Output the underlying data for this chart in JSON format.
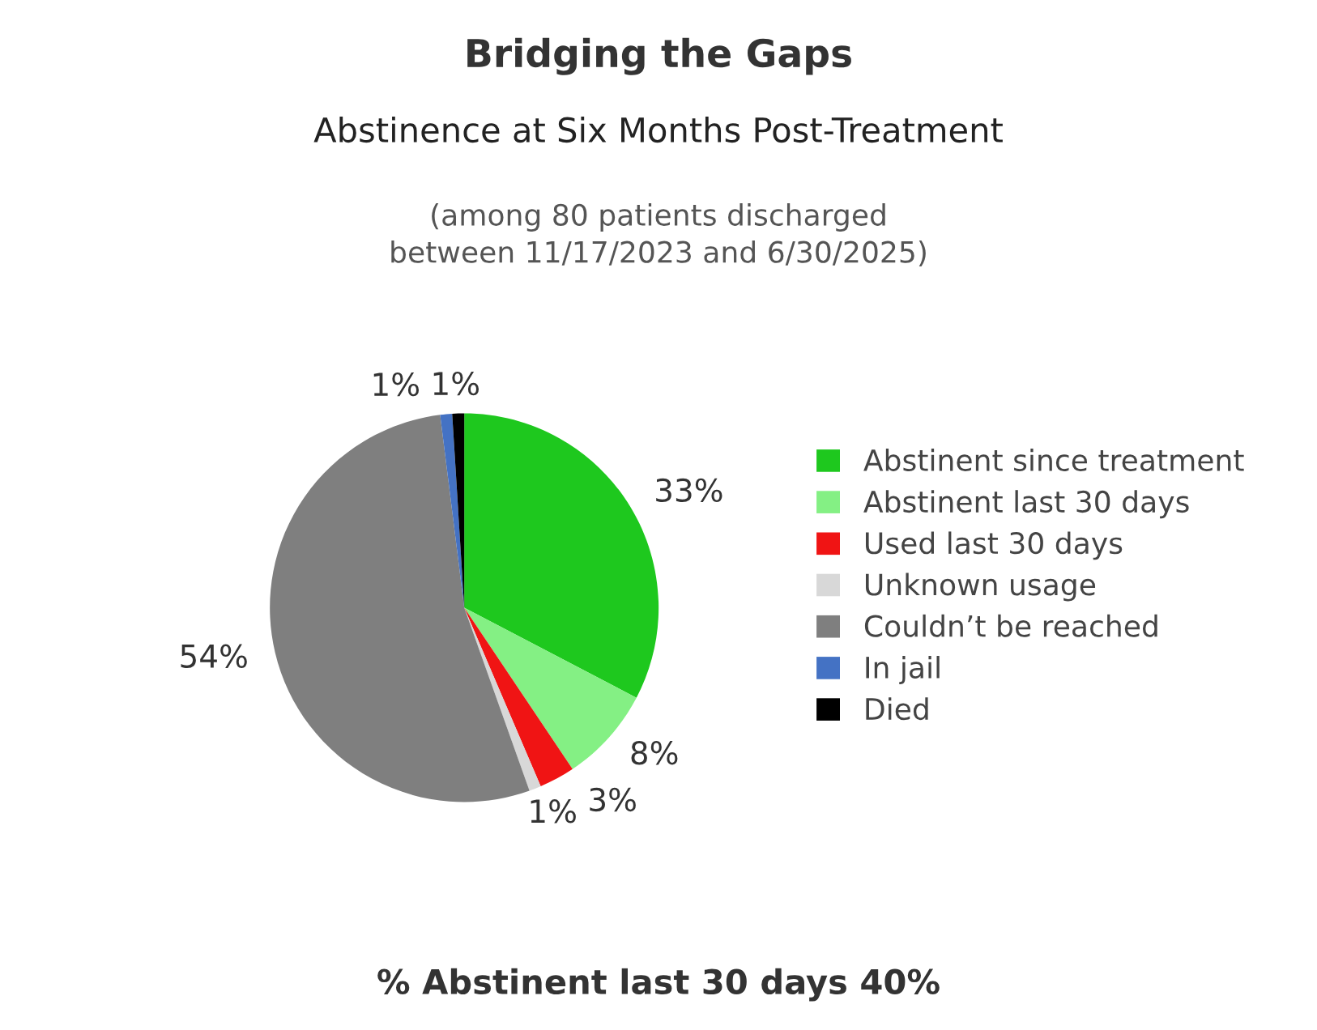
{
  "chart_data": {
    "type": "pie",
    "title": "Bridging the Gaps",
    "subtitle": "Abstinence at Six Months Post-Treatment",
    "annotations": [
      "(among 80 patients discharged\nbetween 11/17/2023 and 6/30/2025)",
      "% Abstinent last 30 days 40%"
    ],
    "categories": [
      "Abstinent since treatment",
      "Abstinent last 30 days",
      "Used last 30 days",
      "Unknown usage",
      "Couldn’t be reached",
      "In jail",
      "Died"
    ],
    "values": [
      33,
      8,
      3,
      1,
      54,
      1,
      1
    ],
    "colors": [
      "#1ec81e",
      "#84f084",
      "#f01414",
      "#d8d8d8",
      "#7f7f7f",
      "#4472c4",
      "#000000"
    ],
    "value_labels": [
      "33%",
      "8%",
      "3%",
      "1%",
      "54%",
      "1%",
      "1%"
    ],
    "legend": "right"
  }
}
